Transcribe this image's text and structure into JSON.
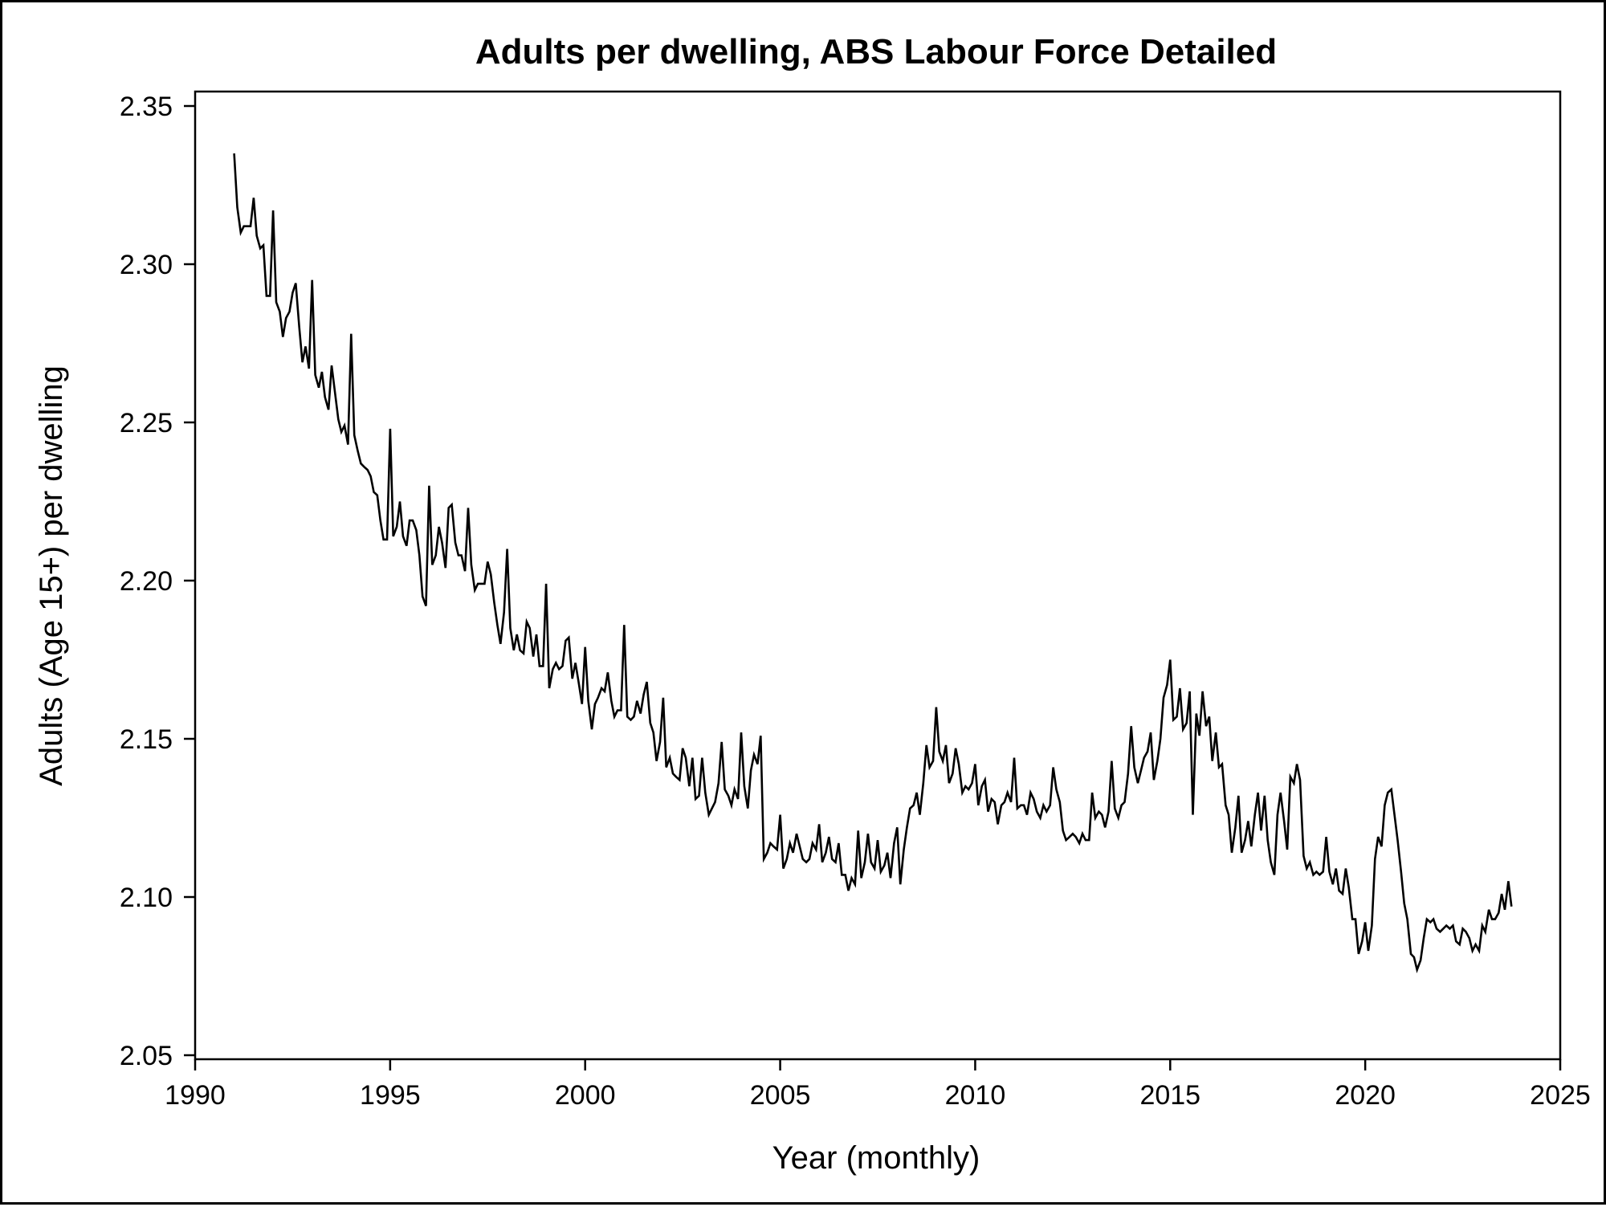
{
  "chart_data": {
    "type": "line",
    "title": "Adults per dwelling, ABS Labour Force Detailed",
    "xlabel": "Year (monthly)",
    "ylabel": "Adults (Age 15+) per dwelling",
    "xlim": [
      1990,
      2025
    ],
    "ylim": [
      2.05,
      2.35
    ],
    "x_ticks": [
      1990,
      1995,
      2000,
      2005,
      2010,
      2015,
      2020,
      2025
    ],
    "x_tick_labels": [
      "1990",
      "1995",
      "2000",
      "2005",
      "2010",
      "2015",
      "2020",
      "2025"
    ],
    "y_ticks": [
      2.05,
      2.1,
      2.15,
      2.2,
      2.25,
      2.3,
      2.35
    ],
    "y_tick_labels": [
      "2.05",
      "2.10",
      "2.15",
      "2.20",
      "2.25",
      "2.30",
      "2.35"
    ],
    "grid": false,
    "legend": "none",
    "line_color": "#000000",
    "series": [
      {
        "x": [
          1991.0,
          1991.08,
          1991.17,
          1991.25,
          1991.33,
          1991.42,
          1991.5,
          1991.58,
          1991.67,
          1991.75,
          1991.83,
          1991.92,
          1992.0,
          1992.08,
          1992.17,
          1992.25,
          1992.33,
          1992.42,
          1992.5,
          1992.58,
          1992.67,
          1992.75,
          1992.83,
          1992.92,
          1993.0,
          1993.08,
          1993.17,
          1993.25,
          1993.33,
          1993.42,
          1993.5,
          1993.58,
          1993.67,
          1993.75,
          1993.83,
          1993.92,
          1994.0,
          1994.08,
          1994.17,
          1994.25,
          1994.33,
          1994.42,
          1994.5,
          1994.58,
          1994.67,
          1994.75,
          1994.83,
          1994.92,
          1995.0,
          1995.08,
          1995.17,
          1995.25,
          1995.33,
          1995.42,
          1995.5,
          1995.58,
          1995.67,
          1995.75,
          1995.83,
          1995.92,
          1996.0,
          1996.08,
          1996.17,
          1996.25,
          1996.33,
          1996.42,
          1996.5,
          1996.58,
          1996.67,
          1996.75,
          1996.83,
          1996.92,
          1997.0,
          1997.08,
          1997.17,
          1997.25,
          1997.33,
          1997.42,
          1997.5,
          1997.58,
          1997.67,
          1997.75,
          1997.83,
          1997.92,
          1998.0,
          1998.08,
          1998.17,
          1998.25,
          1998.33,
          1998.42,
          1998.5,
          1998.58,
          1998.67,
          1998.75,
          1998.83,
          1998.92,
          1999.0,
          1999.08,
          1999.17,
          1999.25,
          1999.33,
          1999.42,
          1999.5,
          1999.58,
          1999.67,
          1999.75,
          1999.83,
          1999.92,
          2000.0,
          2000.08,
          2000.17,
          2000.25,
          2000.33,
          2000.42,
          2000.5,
          2000.58,
          2000.67,
          2000.75,
          2000.83,
          2000.92,
          2001.0,
          2001.08,
          2001.17,
          2001.25,
          2001.33,
          2001.42,
          2001.5,
          2001.58,
          2001.67,
          2001.75,
          2001.83,
          2001.92,
          2002.0,
          2002.08,
          2002.17,
          2002.25,
          2002.33,
          2002.42,
          2002.5,
          2002.58,
          2002.67,
          2002.75,
          2002.83,
          2002.92,
          2003.0,
          2003.08,
          2003.17,
          2003.25,
          2003.33,
          2003.42,
          2003.5,
          2003.58,
          2003.67,
          2003.75,
          2003.83,
          2003.92,
          2004.0,
          2004.08,
          2004.17,
          2004.25,
          2004.33,
          2004.42,
          2004.5,
          2004.58,
          2004.67,
          2004.75,
          2004.83,
          2004.92,
          2005.0,
          2005.08,
          2005.17,
          2005.25,
          2005.33,
          2005.42,
          2005.5,
          2005.58,
          2005.67,
          2005.75,
          2005.83,
          2005.92,
          2006.0,
          2006.08,
          2006.17,
          2006.25,
          2006.33,
          2006.42,
          2006.5,
          2006.58,
          2006.67,
          2006.75,
          2006.83,
          2006.92,
          2007.0,
          2007.08,
          2007.17,
          2007.25,
          2007.33,
          2007.42,
          2007.5,
          2007.58,
          2007.67,
          2007.75,
          2007.83,
          2007.92,
          2008.0,
          2008.08,
          2008.17,
          2008.25,
          2008.33,
          2008.42,
          2008.5,
          2008.58,
          2008.67,
          2008.75,
          2008.83,
          2008.92,
          2009.0,
          2009.08,
          2009.17,
          2009.25,
          2009.33,
          2009.42,
          2009.5,
          2009.58,
          2009.67,
          2009.75,
          2009.83,
          2009.92,
          2010.0,
          2010.08,
          2010.17,
          2010.25,
          2010.33,
          2010.42,
          2010.5,
          2010.58,
          2010.67,
          2010.75,
          2010.83,
          2010.92,
          2011.0,
          2011.08,
          2011.17,
          2011.25,
          2011.33,
          2011.42,
          2011.5,
          2011.58,
          2011.67,
          2011.75,
          2011.83,
          2011.92,
          2012.0,
          2012.08,
          2012.17,
          2012.25,
          2012.33,
          2012.42,
          2012.5,
          2012.58,
          2012.67,
          2012.75,
          2012.83,
          2012.92,
          2013.0,
          2013.08,
          2013.17,
          2013.25,
          2013.33,
          2013.42,
          2013.5,
          2013.58,
          2013.67,
          2013.75,
          2013.83,
          2013.92,
          2014.0,
          2014.08,
          2014.17,
          2014.25,
          2014.33,
          2014.42,
          2014.5,
          2014.58,
          2014.67,
          2014.75,
          2014.83,
          2014.92,
          2015.0,
          2015.08,
          2015.17,
          2015.25,
          2015.33,
          2015.42,
          2015.5,
          2015.58,
          2015.67,
          2015.75,
          2015.83,
          2015.92,
          2016.0,
          2016.08,
          2016.17,
          2016.25,
          2016.33,
          2016.42,
          2016.5,
          2016.58,
          2016.67,
          2016.75,
          2016.83,
          2016.92,
          2017.0,
          2017.08,
          2017.17,
          2017.25,
          2017.33,
          2017.42,
          2017.5,
          2017.58,
          2017.67,
          2017.75,
          2017.83,
          2017.92,
          2018.0,
          2018.08,
          2018.17,
          2018.25,
          2018.33,
          2018.42,
          2018.5,
          2018.58,
          2018.67,
          2018.75,
          2018.83,
          2018.92,
          2019.0,
          2019.08,
          2019.17,
          2019.25,
          2019.33,
          2019.42,
          2019.5,
          2019.58,
          2019.67,
          2019.75,
          2019.83,
          2019.92,
          2020.0,
          2020.08,
          2020.17,
          2020.25,
          2020.33,
          2020.42,
          2020.5,
          2020.58,
          2020.67,
          2020.75,
          2020.83,
          2020.92,
          2021.0,
          2021.08,
          2021.17,
          2021.25,
          2021.33,
          2021.42,
          2021.5,
          2021.58,
          2021.67,
          2021.75,
          2021.83,
          2021.92,
          2022.0,
          2022.08,
          2022.17,
          2022.25,
          2022.33,
          2022.42,
          2022.5,
          2022.58,
          2022.67,
          2022.75,
          2022.83,
          2022.92,
          2023.0,
          2023.08,
          2023.17,
          2023.25,
          2023.33,
          2023.42,
          2023.5,
          2023.58,
          2023.67,
          2023.75
        ],
        "y": [
          2.335,
          2.318,
          2.31,
          2.312,
          2.312,
          2.312,
          2.321,
          2.309,
          2.305,
          2.306,
          2.29,
          2.29,
          2.317,
          2.288,
          2.285,
          2.277,
          2.283,
          2.285,
          2.291,
          2.294,
          2.28,
          2.269,
          2.274,
          2.267,
          2.295,
          2.265,
          2.261,
          2.266,
          2.258,
          2.254,
          2.268,
          2.26,
          2.251,
          2.247,
          2.249,
          2.243,
          2.278,
          2.246,
          2.241,
          2.237,
          2.236,
          2.235,
          2.233,
          2.228,
          2.227,
          2.219,
          2.213,
          2.213,
          2.248,
          2.214,
          2.217,
          2.225,
          2.214,
          2.211,
          2.219,
          2.219,
          2.216,
          2.208,
          2.195,
          2.192,
          2.23,
          2.205,
          2.208,
          2.217,
          2.212,
          2.204,
          2.223,
          2.224,
          2.212,
          2.208,
          2.208,
          2.203,
          2.223,
          2.205,
          2.197,
          2.199,
          2.199,
          2.199,
          2.206,
          2.202,
          2.193,
          2.186,
          2.18,
          2.19,
          2.21,
          2.185,
          2.178,
          2.183,
          2.178,
          2.177,
          2.187,
          2.185,
          2.176,
          2.183,
          2.173,
          2.173,
          2.199,
          2.166,
          2.172,
          2.174,
          2.172,
          2.173,
          2.181,
          2.182,
          2.169,
          2.174,
          2.168,
          2.161,
          2.179,
          2.162,
          2.153,
          2.161,
          2.163,
          2.166,
          2.165,
          2.171,
          2.162,
          2.157,
          2.159,
          2.159,
          2.186,
          2.157,
          2.156,
          2.157,
          2.162,
          2.158,
          2.164,
          2.168,
          2.155,
          2.152,
          2.143,
          2.149,
          2.163,
          2.141,
          2.144,
          2.139,
          2.138,
          2.137,
          2.147,
          2.144,
          2.135,
          2.144,
          2.131,
          2.132,
          2.144,
          2.133,
          2.126,
          2.128,
          2.13,
          2.136,
          2.149,
          2.134,
          2.132,
          2.129,
          2.134,
          2.131,
          2.152,
          2.135,
          2.128,
          2.14,
          2.145,
          2.142,
          2.151,
          2.112,
          2.114,
          2.117,
          2.116,
          2.115,
          2.126,
          2.109,
          2.112,
          2.117,
          2.114,
          2.12,
          2.116,
          2.112,
          2.111,
          2.112,
          2.117,
          2.115,
          2.123,
          2.111,
          2.114,
          2.119,
          2.112,
          2.111,
          2.117,
          2.107,
          2.107,
          2.102,
          2.106,
          2.104,
          2.121,
          2.106,
          2.111,
          2.12,
          2.111,
          2.109,
          2.118,
          2.108,
          2.11,
          2.114,
          2.106,
          2.117,
          2.122,
          2.104,
          2.115,
          2.122,
          2.128,
          2.129,
          2.133,
          2.126,
          2.136,
          2.148,
          2.141,
          2.143,
          2.16,
          2.146,
          2.143,
          2.148,
          2.136,
          2.139,
          2.147,
          2.142,
          2.133,
          2.135,
          2.134,
          2.136,
          2.142,
          2.129,
          2.135,
          2.137,
          2.127,
          2.131,
          2.13,
          2.123,
          2.129,
          2.13,
          2.133,
          2.13,
          2.144,
          2.128,
          2.129,
          2.129,
          2.126,
          2.133,
          2.131,
          2.127,
          2.125,
          2.129,
          2.127,
          2.129,
          2.141,
          2.134,
          2.13,
          2.121,
          2.118,
          2.119,
          2.12,
          2.119,
          2.117,
          2.12,
          2.118,
          2.118,
          2.133,
          2.125,
          2.127,
          2.126,
          2.122,
          2.127,
          2.143,
          2.128,
          2.125,
          2.129,
          2.13,
          2.139,
          2.154,
          2.141,
          2.136,
          2.14,
          2.144,
          2.146,
          2.152,
          2.137,
          2.143,
          2.15,
          2.163,
          2.167,
          2.175,
          2.156,
          2.157,
          2.166,
          2.153,
          2.155,
          2.165,
          2.126,
          2.158,
          2.151,
          2.165,
          2.154,
          2.157,
          2.143,
          2.152,
          2.141,
          2.142,
          2.129,
          2.126,
          2.114,
          2.122,
          2.132,
          2.114,
          2.118,
          2.124,
          2.116,
          2.126,
          2.133,
          2.121,
          2.132,
          2.118,
          2.111,
          2.107,
          2.126,
          2.133,
          2.124,
          2.115,
          2.138,
          2.136,
          2.142,
          2.137,
          2.113,
          2.109,
          2.111,
          2.107,
          2.108,
          2.107,
          2.108,
          2.119,
          2.108,
          2.104,
          2.109,
          2.102,
          2.101,
          2.109,
          2.103,
          2.093,
          2.093,
          2.082,
          2.086,
          2.092,
          2.083,
          2.091,
          2.112,
          2.119,
          2.116,
          2.129,
          2.133,
          2.134,
          2.126,
          2.118,
          2.108,
          2.098,
          2.093,
          2.082,
          2.081,
          2.077,
          2.08,
          2.087,
          2.093,
          2.092,
          2.093,
          2.09,
          2.089,
          2.09,
          2.091,
          2.09,
          2.091,
          2.086,
          2.085,
          2.09,
          2.089,
          2.087,
          2.083,
          2.085,
          2.083,
          2.091,
          2.089,
          2.096,
          2.093,
          2.093,
          2.095,
          2.101,
          2.096,
          2.105,
          2.097
        ]
      }
    ]
  }
}
